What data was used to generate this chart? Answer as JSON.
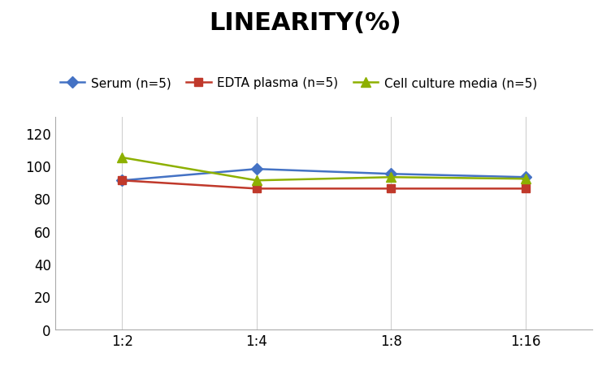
{
  "title": "LINEARITY(%)",
  "x_labels": [
    "1:2",
    "1:4",
    "1:8",
    "1:16"
  ],
  "series": [
    {
      "label": "Serum (n=5)",
      "values": [
        91,
        98,
        95,
        93
      ],
      "color": "#4472C4",
      "marker": "D",
      "markersize": 7
    },
    {
      "label": "EDTA plasma (n=5)",
      "values": [
        91,
        86,
        86,
        86
      ],
      "color": "#C0392B",
      "marker": "s",
      "markersize": 7
    },
    {
      "label": "Cell culture media (n=5)",
      "values": [
        105,
        91,
        93,
        92
      ],
      "color": "#8DB000",
      "marker": "^",
      "markersize": 8
    }
  ],
  "ylim": [
    0,
    130
  ],
  "yticks": [
    0,
    20,
    40,
    60,
    80,
    100,
    120
  ],
  "title_fontsize": 22,
  "legend_fontsize": 11,
  "tick_fontsize": 12,
  "background_color": "#ffffff",
  "grid_color": "#d0d0d0"
}
